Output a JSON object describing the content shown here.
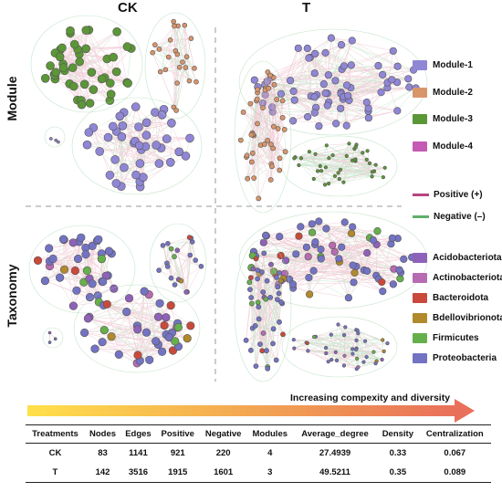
{
  "columns": [
    "CK",
    "T"
  ],
  "rows": [
    "Module",
    "Taxonomy"
  ],
  "module_legend": [
    {
      "label": "Module-1",
      "color": "#8f86d6"
    },
    {
      "label": "Module-2",
      "color": "#d9956a"
    },
    {
      "label": "Module-3",
      "color": "#5b9637"
    },
    {
      "label": "Module-4",
      "color": "#c45ab4"
    }
  ],
  "edge_legend": [
    {
      "label": "Positive (+)",
      "color": "#b8457f"
    },
    {
      "label": "Negative (–)",
      "color": "#5fae6a"
    }
  ],
  "taxonomy_legend": [
    {
      "label": "Acidobacteriota",
      "color": "#8e62b8"
    },
    {
      "label": "Actinobacteriota",
      "color": "#b66bb2"
    },
    {
      "label": "Bacteroidota",
      "color": "#c94a3a"
    },
    {
      "label": "Bdellovibrionota",
      "color": "#b08a2b"
    },
    {
      "label": "Firmicutes",
      "color": "#66b04c"
    },
    {
      "label": "Proteobacteria",
      "color": "#7373c4"
    }
  ],
  "colors": {
    "pos_edge": "#e8a5b8",
    "neg_edge": "#9fd4a8",
    "node_stroke": "#555555",
    "arrow_start": "#ffe04a",
    "arrow_end": "#e8705a"
  },
  "arrow_label": "Increasing compexity and diversity",
  "table": {
    "headers": [
      "Treatments",
      "Nodes",
      "Edges",
      "Positive",
      "Negative",
      "Modules",
      "Average_degree",
      "Density",
      "Centralization"
    ],
    "rows": [
      [
        "CK",
        "83",
        "1141",
        "921",
        "220",
        "4",
        "27.4939",
        "0.33",
        "0.067"
      ],
      [
        "T",
        "142",
        "3516",
        "1915",
        "1601",
        "3",
        "49.5211",
        "0.35",
        "0.089"
      ]
    ]
  }
}
